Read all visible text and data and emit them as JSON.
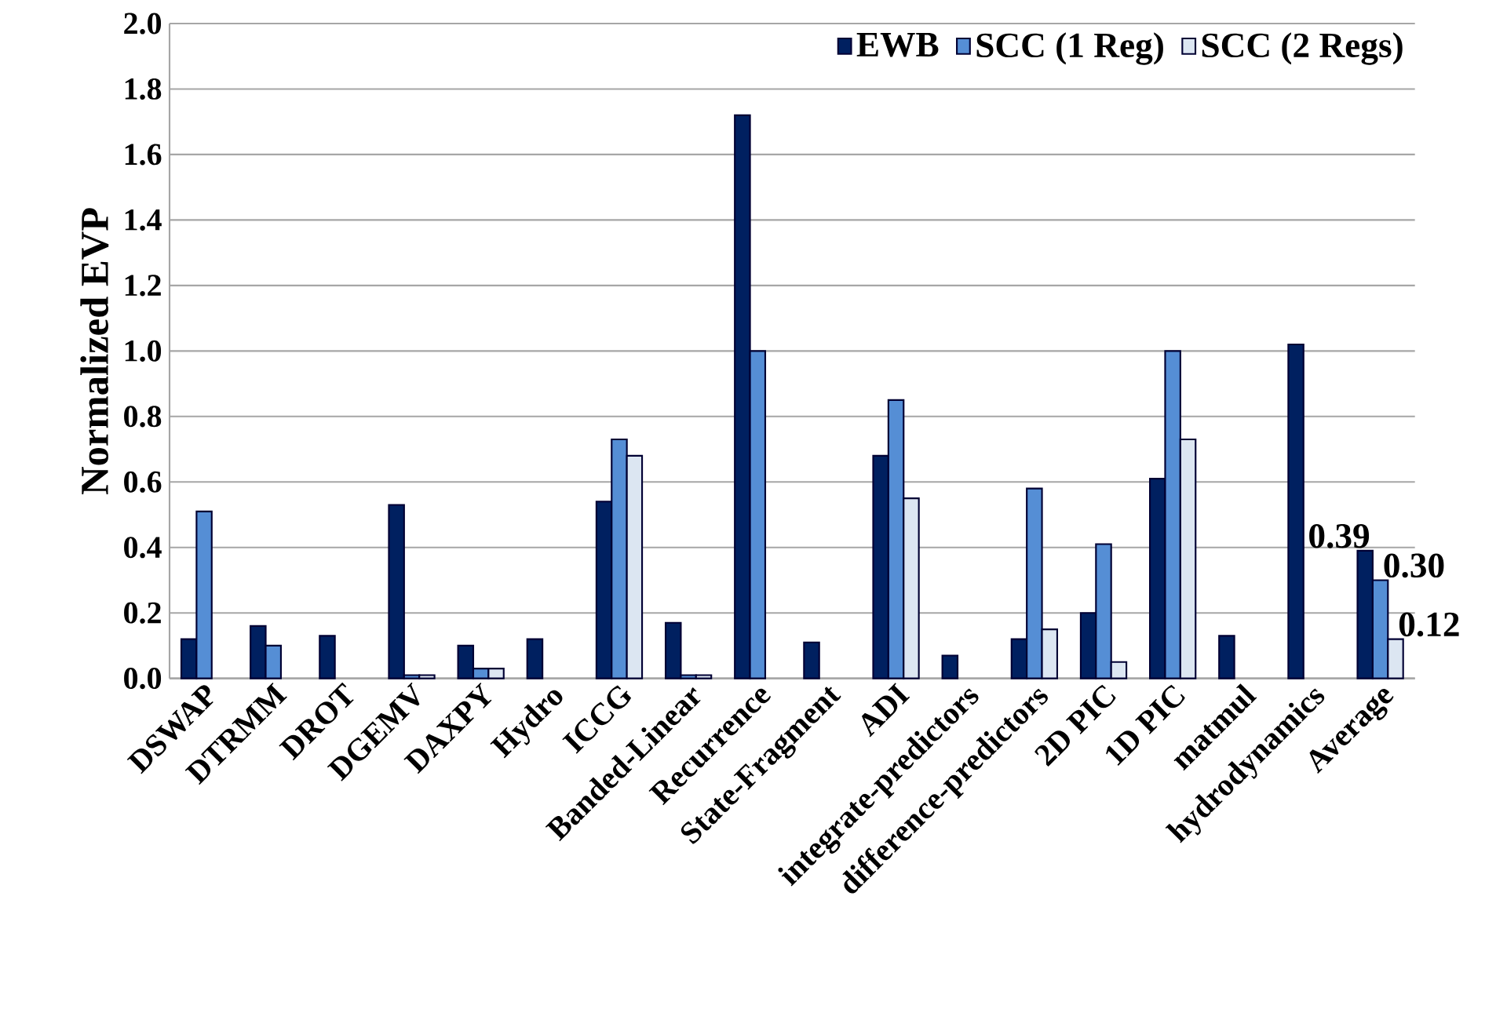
{
  "chart_data": {
    "type": "bar",
    "ylabel": "Normalized EVP",
    "categories": [
      "DSWAP",
      "DTRMM",
      "DROT",
      "DGEMV",
      "DAXPY",
      "Hydro",
      "ICCG",
      "Banded-Linear",
      "Recurrence",
      "State-Fragment",
      "ADI",
      "integrate-predictors",
      "difference-predictors",
      "2D PIC",
      "1D PIC",
      "matmul",
      "hydrodynamics",
      "Average"
    ],
    "series": [
      {
        "name": "EWB",
        "color": "#002060",
        "values": [
          0.12,
          0.16,
          0.13,
          0.53,
          0.1,
          0.12,
          0.54,
          0.17,
          1.72,
          0.11,
          0.68,
          0.07,
          0.12,
          0.2,
          0.61,
          0.13,
          1.02,
          0.39
        ],
        "value_labels": [
          null,
          null,
          null,
          null,
          null,
          null,
          null,
          null,
          null,
          null,
          null,
          null,
          null,
          null,
          null,
          null,
          null,
          "0.39"
        ]
      },
      {
        "name": "SCC (1 Reg)",
        "color": "#558ed5",
        "values": [
          0.51,
          0.1,
          null,
          0.01,
          0.03,
          null,
          0.73,
          0.01,
          1.0,
          null,
          0.85,
          null,
          0.58,
          0.41,
          1.0,
          null,
          null,
          0.3
        ],
        "value_labels": [
          null,
          null,
          null,
          null,
          null,
          null,
          null,
          null,
          null,
          null,
          null,
          null,
          null,
          null,
          null,
          null,
          null,
          "0.30"
        ]
      },
      {
        "name": "SCC (2 Regs)",
        "color": "#dce6f2",
        "values": [
          null,
          null,
          null,
          0.01,
          0.03,
          null,
          0.68,
          0.01,
          null,
          null,
          0.55,
          null,
          0.15,
          0.05,
          0.73,
          null,
          null,
          0.12
        ],
        "value_labels": [
          null,
          null,
          null,
          null,
          null,
          null,
          null,
          null,
          null,
          null,
          null,
          null,
          null,
          null,
          null,
          null,
          null,
          "0.12"
        ]
      }
    ],
    "ylim": [
      0,
      2.0
    ],
    "yticks": [
      {
        "value": 0,
        "label": "0.0"
      },
      {
        "value": 0.2,
        "label": "0.2"
      },
      {
        "value": 0.4,
        "label": "0.4"
      },
      {
        "value": 0.6,
        "label": "0.6"
      },
      {
        "value": 0.8,
        "label": "0.8"
      },
      {
        "value": 1.0,
        "label": "1.0"
      },
      {
        "value": 1.2,
        "label": "1.2"
      },
      {
        "value": 1.4,
        "label": "1.4"
      },
      {
        "value": 1.6,
        "label": "1.6"
      },
      {
        "value": 1.8,
        "label": "1.8"
      },
      {
        "value": 2.0,
        "label": "2.0"
      }
    ],
    "grid": "y",
    "legend": "top right"
  }
}
